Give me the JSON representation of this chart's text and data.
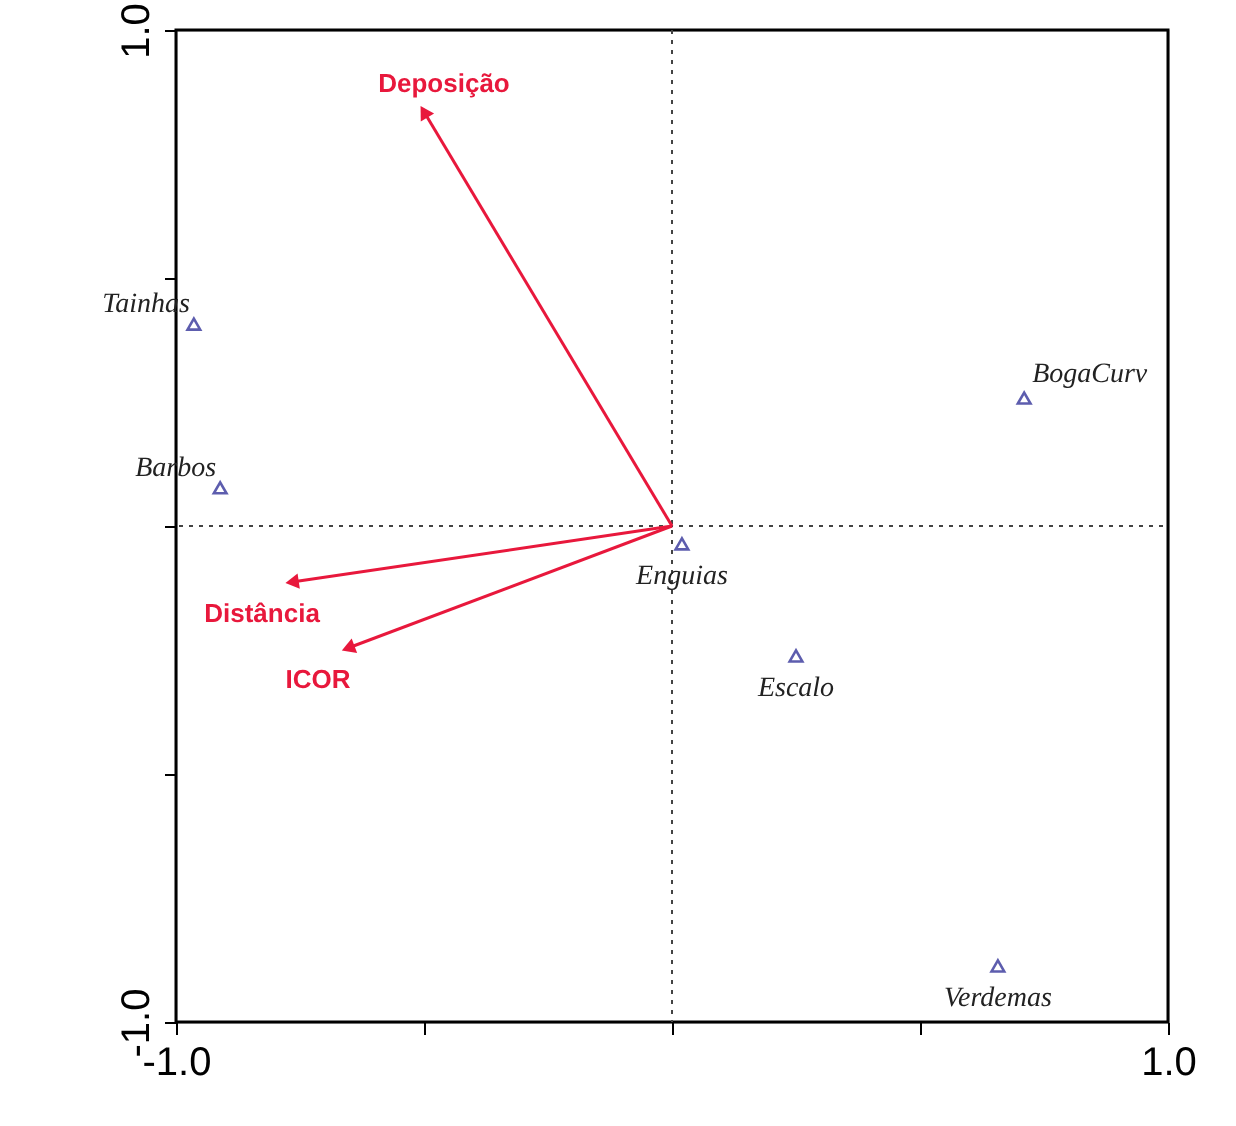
{
  "chart_data": {
    "type": "scatter",
    "xlim": [
      -1.0,
      1.0
    ],
    "ylim": [
      -1.0,
      1.0
    ],
    "xticks": [
      {
        "value": -1.0,
        "label": "-1.0"
      },
      {
        "value": -0.5,
        "label": null
      },
      {
        "value": 0,
        "label": null
      },
      {
        "value": 0.5,
        "label": null
      },
      {
        "value": 1.0,
        "label": "1.0"
      }
    ],
    "yticks": [
      {
        "value": -1.0,
        "label": "-1.0"
      },
      {
        "value": -0.5,
        "label": null
      },
      {
        "value": 0,
        "label": null
      },
      {
        "value": 0.5,
        "label": null
      },
      {
        "value": 1.0,
        "label": "1.0"
      }
    ],
    "grid": false,
    "series": [
      {
        "type": "scatter",
        "marker": "triangle",
        "color": "#1a1a8c",
        "x": [
          -0.964,
          -0.911,
          0.02,
          0.71,
          0.25,
          0.657
        ],
        "values": [
          0.407,
          0.077,
          -0.036,
          0.258,
          -0.262,
          -0.887
        ]
      },
      {
        "type": "line",
        "name": "Deposição",
        "color": "#e8183c",
        "x": [
          0,
          -0.5
        ],
        "values": [
          0,
          0.835
        ]
      },
      {
        "type": "line",
        "name": "Distância",
        "color": "#e8183c",
        "x": [
          0,
          -0.766
        ],
        "values": [
          0,
          -0.113
        ]
      },
      {
        "type": "line",
        "name": "ICOR",
        "color": "#e8183c",
        "x": [
          0,
          -0.653
        ],
        "values": [
          0,
          -0.246
        ]
      }
    ],
    "annotations": [
      {
        "text": "Tainhas",
        "x": -0.964,
        "y": 0.407
      },
      {
        "text": "Barbos",
        "x": -0.911,
        "y": 0.077
      },
      {
        "text": "Enguias",
        "x": 0.02,
        "y": -0.036
      },
      {
        "text": "BogaCurv",
        "x": 0.71,
        "y": 0.258
      },
      {
        "text": "Escalo",
        "x": 0.25,
        "y": -0.262
      },
      {
        "text": "Verdemas",
        "x": 0.657,
        "y": -0.887
      }
    ],
    "ref_lines": [
      {
        "axis": "x",
        "value": 0,
        "color": "#444444",
        "line_style": "dotted"
      },
      {
        "axis": "y",
        "value": 0,
        "color": "#444444",
        "line_style": "dotted"
      }
    ]
  }
}
